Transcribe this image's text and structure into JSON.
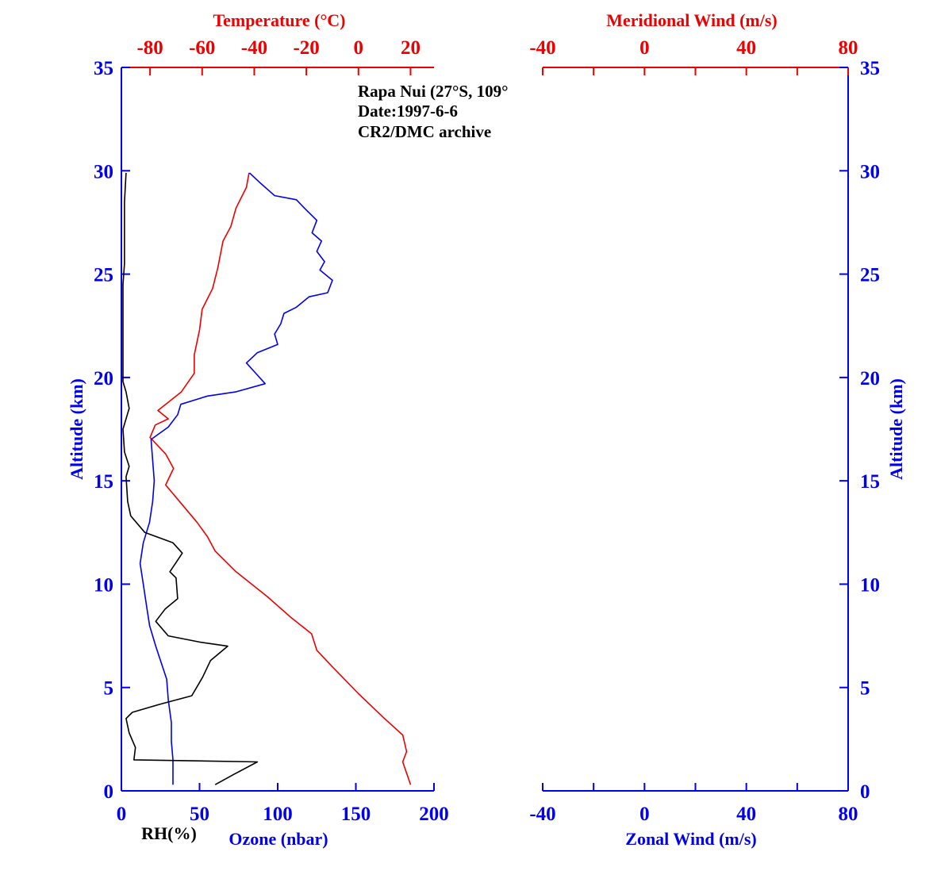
{
  "colors": {
    "blue": "#0000ee",
    "red": "#ee0000",
    "black": "#000000"
  },
  "annotation": [
    "Rapa Nui (27°S, 109°",
    "Date:1997-6-6",
    "CR2/DMC archive"
  ],
  "chart_data": [
    {
      "type": "line",
      "title": "",
      "axes": {
        "altitude": {
          "label": "Altitude (km)",
          "range": [
            0,
            35
          ],
          "ticks": [
            "0",
            "5",
            "10",
            "15",
            "20",
            "25",
            "30",
            "35"
          ]
        },
        "ozone": {
          "label": "Ozone (nbar)",
          "range": [
            0,
            200
          ],
          "ticks": [
            "0",
            "50",
            "100",
            "150",
            "200"
          ]
        },
        "rh": {
          "label": "RH(%)",
          "range": [
            0,
            200
          ]
        },
        "temperature": {
          "label": "Temperature (°C)",
          "range": [
            -91,
            29
          ],
          "ticks": [
            "-80",
            "-60",
            "-40",
            "-20",
            "0",
            "20"
          ]
        }
      },
      "series": [
        {
          "axis": "temperature",
          "color": "#ee0000",
          "points": [
            [
              20,
              0.3
            ],
            [
              17,
              1.4
            ],
            [
              18.5,
              1.9
            ],
            [
              17,
              2.7
            ],
            [
              10,
              3.5
            ],
            [
              0,
              4.7
            ],
            [
              -10,
              6.0
            ],
            [
              -16,
              6.8
            ],
            [
              -18,
              7.6
            ],
            [
              -26,
              8.4
            ],
            [
              -35,
              9.4
            ],
            [
              -47,
              10.6
            ],
            [
              -55,
              11.6
            ],
            [
              -58,
              12.3
            ],
            [
              -62,
              13.0
            ],
            [
              -68,
              13.9
            ],
            [
              -74,
              14.8
            ],
            [
              -71,
              15.6
            ],
            [
              -74,
              16.3
            ],
            [
              -80,
              17.1
            ],
            [
              -78,
              17.7
            ],
            [
              -73,
              18.0
            ],
            [
              -77,
              18.4
            ],
            [
              -68,
              19.3
            ],
            [
              -63,
              20.2
            ],
            [
              -63,
              21.1
            ],
            [
              -61,
              22.3
            ],
            [
              -60,
              23.3
            ],
            [
              -56,
              24.3
            ],
            [
              -54,
              25.3
            ],
            [
              -52,
              26.6
            ],
            [
              -49,
              27.3
            ],
            [
              -47,
              28.2
            ],
            [
              -43,
              29.2
            ],
            [
              -42,
              29.9
            ]
          ]
        },
        {
          "axis": "ozone",
          "color": "#0000ee",
          "points": [
            [
              33,
              0.3
            ],
            [
              33,
              1.5
            ],
            [
              32,
              2.4
            ],
            [
              32,
              3.3
            ],
            [
              30,
              4.4
            ],
            [
              29,
              5.4
            ],
            [
              25,
              6.3
            ],
            [
              22,
              7.0
            ],
            [
              18,
              8.0
            ],
            [
              16,
              9.0
            ],
            [
              14,
              10.0
            ],
            [
              12,
              11.0
            ],
            [
              14,
              12.0
            ],
            [
              18,
              13.0
            ],
            [
              20,
              14.0
            ],
            [
              21,
              15.0
            ],
            [
              20,
              16.0
            ],
            [
              19,
              17.0
            ],
            [
              30,
              17.6
            ],
            [
              36,
              18.2
            ],
            [
              38,
              18.7
            ],
            [
              55,
              19.1
            ],
            [
              73,
              19.3
            ],
            [
              92,
              19.7
            ],
            [
              86,
              20.2
            ],
            [
              80,
              20.7
            ],
            [
              87,
              21.2
            ],
            [
              100,
              21.6
            ],
            [
              98,
              22.1
            ],
            [
              102,
              22.6
            ],
            [
              104,
              23.1
            ],
            [
              112,
              23.4
            ],
            [
              120,
              23.9
            ],
            [
              132,
              24.1
            ],
            [
              135,
              24.7
            ],
            [
              127,
              25.2
            ],
            [
              130,
              25.6
            ],
            [
              125,
              26.1
            ],
            [
              128,
              26.6
            ],
            [
              122,
              27.0
            ],
            [
              125,
              27.6
            ],
            [
              117,
              28.2
            ],
            [
              112,
              28.6
            ],
            [
              98,
              28.8
            ],
            [
              95,
              29.0
            ],
            [
              89,
              29.4
            ],
            [
              82,
              29.9
            ]
          ]
        },
        {
          "axis": "rh",
          "color": "#000000",
          "points": [
            [
              60,
              0.3
            ],
            [
              72,
              0.8
            ],
            [
              87,
              1.4
            ],
            [
              8,
              1.5
            ],
            [
              9,
              2.1
            ],
            [
              5,
              2.8
            ],
            [
              3,
              3.5
            ],
            [
              7,
              3.8
            ],
            [
              25,
              4.2
            ],
            [
              45,
              4.6
            ],
            [
              52,
              5.5
            ],
            [
              57,
              6.3
            ],
            [
              68,
              7.0
            ],
            [
              50,
              7.2
            ],
            [
              30,
              7.5
            ],
            [
              22,
              8.2
            ],
            [
              28,
              8.8
            ],
            [
              36,
              9.3
            ],
            [
              35,
              10.3
            ],
            [
              31,
              10.6
            ],
            [
              39,
              11.5
            ],
            [
              33,
              12.0
            ],
            [
              15,
              12.5
            ],
            [
              6,
              13.3
            ],
            [
              4,
              14.0
            ],
            [
              3,
              15.2
            ],
            [
              5,
              15.7
            ],
            [
              2,
              16.4
            ],
            [
              1,
              17.5
            ],
            [
              5,
              18.5
            ],
            [
              3,
              19.3
            ],
            [
              1,
              19.8
            ],
            [
              1,
              21.0
            ],
            [
              1,
              23.0
            ],
            [
              1,
              24.5
            ],
            [
              2,
              25.5
            ],
            [
              2,
              27.0
            ],
            [
              2,
              28.5
            ],
            [
              3,
              29.9
            ]
          ]
        }
      ]
    },
    {
      "type": "line",
      "title": "",
      "axes": {
        "altitude": {
          "label": "Altitude (km)",
          "range": [
            0,
            35
          ],
          "ticks": [
            "0",
            "5",
            "10",
            "15",
            "20",
            "25",
            "30",
            "35"
          ]
        },
        "zonal": {
          "label": "Zonal Wind (m/s)",
          "range": [
            -40,
            80
          ],
          "ticks": [
            "-40",
            "0",
            "40",
            "80"
          ]
        },
        "meridional": {
          "label": "Meridional Wind (m/s)",
          "range": [
            -40,
            80
          ],
          "ticks": [
            "-40",
            "0",
            "40",
            "80"
          ]
        }
      },
      "series": []
    }
  ]
}
